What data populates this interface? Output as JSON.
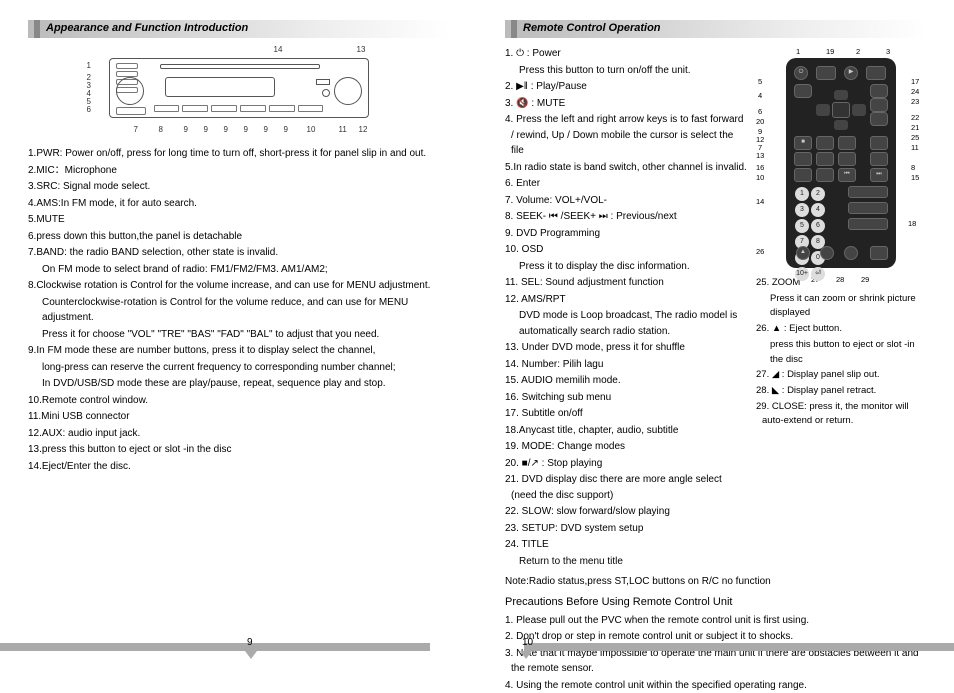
{
  "left": {
    "heading": "Appearance and Function Introduction",
    "callouts_top": [
      "14",
      "13"
    ],
    "callouts_left": [
      "1",
      "2",
      "3",
      "4",
      "5",
      "6"
    ],
    "callouts_bottom": [
      "7",
      "8",
      "9",
      "9",
      "9",
      "9",
      "9",
      "9",
      "10",
      "11",
      "12"
    ],
    "items": [
      "1.PWR: Power on/off, press for long time to turn off, short-press it for panel slip in and out.",
      "2.MIC：Microphone",
      "3.SRC: Signal mode select.",
      "4.AMS:In FM mode, it for auto search.",
      "5.MUTE",
      "6.press down this button,the panel is detachable",
      "7.BAND: the radio BAND selection, other state is invalid.",
      "   On FM mode to select brand of radio: FM1/FM2/FM3. AM1/AM2;",
      "8.Clockwise rotation is Control for the volume increase, and can use for MENU adjustment.",
      "   Counterclockwise-rotation is Control for the volume reduce, and can use for MENU adjustment.",
      "   Press it for choose \"VOL\" \"TRE\" \"BAS\" \"FAD\" \"BAL\" to adjust that you need.",
      "9.In FM mode these are number buttons, press it to display select the channel,",
      "   long-press can reserve the current frequency to corresponding number channel;",
      "   In DVD/USB/SD mode these are play/pause, repeat, sequence play and stop.",
      "10.Remote control window.",
      "11.Mini USB connector",
      "12.AUX: audio input jack.",
      "13.press this button to eject or slot -in the disc",
      "14.Eject/Enter the disc."
    ]
  },
  "right": {
    "heading": "Remote Control Operation",
    "col_a": [
      "1. ⏻ : Power",
      "   Press this button to turn on/off the unit.",
      "2. ▶‖ : Play/Pause",
      "3. 🔇 : MUTE",
      "4. Press the left and right arrow keys is to fast forward / rewind, Up / Down  mobile the cursor is select the file",
      "5.In radio state is band switch, other channel is invalid.",
      "6. Enter",
      "7. Volume: VOL+/VOL-",
      "8. SEEK- ⏮ /SEEK+ ⏭ : Previous/next",
      "9. DVD Programming",
      "10. OSD",
      "   Press it to display the disc information.",
      "11. SEL: Sound adjustment function",
      "12. AMS/RPT",
      "   DVD mode is Loop broadcast, The radio model is automatically search radio station.",
      "13. Under DVD mode, press it for shuffle",
      "14. Number: Pilih lagu",
      "15. AUDIO memilih mode.",
      "16. Switching sub menu",
      "17. Subtitle on/off",
      "18.Anycast title, chapter, audio, subtitle",
      "19. MODE: Change modes",
      "20. ■/↗ : Stop playing",
      "21. DVD display disc there are more angle select (need the disc support)",
      "22. SLOW: slow forward/slow playing",
      "23. SETUP: DVD system setup",
      "24. TITLE",
      "   Return to the menu title"
    ],
    "col_b": [
      "25. ZOOM",
      "   Press it can zoom or shrink picture displayed",
      "26. ▲ : Eject button.",
      "   press this button to eject or slot -in the disc",
      "27. ◢ : Display panel slip out.",
      "28. ◣ : Display panel retract.",
      "29. CLOSE: press it, the monitor will auto-extend or return."
    ],
    "remote_callouts_left": [
      "1",
      "5",
      "4",
      "6",
      "20",
      "9",
      "12",
      "7",
      "13",
      "16",
      "10",
      "14",
      "26"
    ],
    "remote_callouts_right": [
      "19",
      "2",
      "3",
      "17",
      "24",
      "23",
      "22",
      "21",
      "25",
      "11",
      "8",
      "15",
      "18"
    ],
    "remote_callouts_bottom": [
      "27",
      "28",
      "29"
    ],
    "note": "Note:Radio status,press ST,LOC buttons on R/C no function",
    "precautions_heading": "Precautions Before Using Remote Control Unit",
    "precautions": [
      "1. Please pull out the PVC when the remote control unit is first using.",
      "2. Don't drop or step in remote control unit or subject it to shocks.",
      "3. Note that it maybe impossible to operate the main unit if there are obstacles between it and the remote sensor.",
      "4. Using the remote control unit within the specified operating range."
    ]
  },
  "page_left": "9",
  "page_right": "10",
  "numpad": [
    "1",
    "2",
    "3",
    "4",
    "5",
    "6",
    "7",
    "8",
    "9",
    "0",
    "10+",
    "⏎"
  ]
}
